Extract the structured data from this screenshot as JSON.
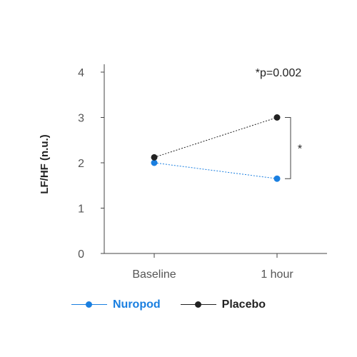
{
  "chart_data": {
    "type": "line",
    "categories": [
      "Baseline",
      "1 hour"
    ],
    "series": [
      {
        "name": "Nuropod",
        "values": [
          2.0,
          1.65
        ],
        "color": "#1a7fe0",
        "line_style": "dotted"
      },
      {
        "name": "Placebo",
        "values": [
          2.12,
          3.0
        ],
        "color": "#222222",
        "line_style": "dotted"
      }
    ],
    "title": "",
    "xlabel": "",
    "ylabel": "LF/HF (n.u.)",
    "ylim": [
      0,
      4
    ],
    "yticks": [
      "0",
      "1",
      "2",
      "3",
      "4"
    ],
    "grid": false,
    "legend_position": "bottom-left",
    "annotations": {
      "p_value": "*p=0.002",
      "significance_marker": "*"
    }
  }
}
